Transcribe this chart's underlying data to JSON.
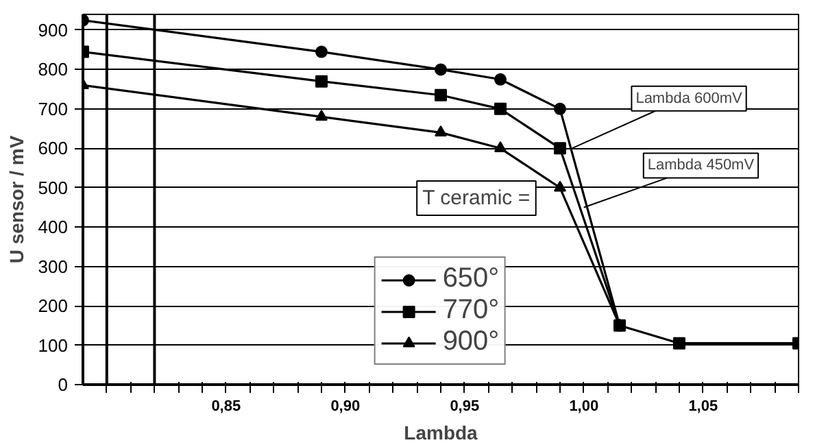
{
  "chart_data": {
    "type": "line",
    "xlabel": "Lambda",
    "ylabel": "U sensor / mV",
    "xlim": [
      0.79,
      1.09
    ],
    "ylim": [
      0,
      940
    ],
    "xticks": [
      {
        "value": 0.8,
        "label": null
      },
      {
        "value": 0.81,
        "label": null
      },
      {
        "value": 0.82,
        "label": null
      },
      {
        "value": 0.83,
        "label": null
      },
      {
        "value": 0.84,
        "label": null
      },
      {
        "value": 0.85,
        "label": "0,85"
      },
      {
        "value": 0.86,
        "label": null
      },
      {
        "value": 0.87,
        "label": null
      },
      {
        "value": 0.88,
        "label": null
      },
      {
        "value": 0.89,
        "label": null
      },
      {
        "value": 0.9,
        "label": "0,90"
      },
      {
        "value": 0.91,
        "label": null
      },
      {
        "value": 0.92,
        "label": null
      },
      {
        "value": 0.93,
        "label": null
      },
      {
        "value": 0.94,
        "label": null
      },
      {
        "value": 0.95,
        "label": "0,95"
      },
      {
        "value": 0.96,
        "label": null
      },
      {
        "value": 0.97,
        "label": null
      },
      {
        "value": 0.98,
        "label": null
      },
      {
        "value": 0.99,
        "label": null
      },
      {
        "value": 1.0,
        "label": "1,00"
      },
      {
        "value": 1.01,
        "label": null
      },
      {
        "value": 1.02,
        "label": null
      },
      {
        "value": 1.03,
        "label": null
      },
      {
        "value": 1.04,
        "label": null
      },
      {
        "value": 1.05,
        "label": "1,05"
      },
      {
        "value": 1.06,
        "label": null
      },
      {
        "value": 1.07,
        "label": null
      },
      {
        "value": 1.08,
        "label": null
      },
      {
        "value": 1.09,
        "label": null
      }
    ],
    "yticks": [
      0,
      100,
      200,
      300,
      400,
      500,
      600,
      700,
      800,
      900
    ],
    "grid": "y",
    "legend": "bottom",
    "line_style": "solid",
    "series": [
      {
        "name": "650°",
        "color": "#000000",
        "marker": "circle",
        "x": [
          0.79,
          0.89,
          0.94,
          0.965,
          0.99,
          1.015
        ],
        "values": [
          925,
          845,
          800,
          775,
          700,
          150
        ]
      },
      {
        "name": "770°",
        "color": "#000000",
        "marker": "square",
        "x": [
          0.79,
          0.89,
          0.94,
          0.965,
          0.99,
          1.015,
          1.04,
          1.09
        ],
        "values": [
          845,
          770,
          735,
          700,
          600,
          150,
          105,
          105
        ]
      },
      {
        "name": "900°",
        "color": "#000000",
        "marker": "triangle",
        "x": [
          0.79,
          0.89,
          0.94,
          0.965,
          0.99,
          1.015
        ],
        "values": [
          760,
          680,
          640,
          600,
          500,
          150
        ]
      }
    ],
    "ref_lines": [
      {
        "axis": "x",
        "value": 0.8,
        "label": null,
        "color": "#000000"
      },
      {
        "axis": "x",
        "value": 0.82,
        "label": null,
        "color": "#000000"
      }
    ],
    "annotations": [
      {
        "text": "Lambda 600mV",
        "x": 0.995,
        "y": 600
      },
      {
        "text": "Lambda 450mV",
        "x": 1.0,
        "y": 450
      },
      "T ceramic ="
    ]
  }
}
